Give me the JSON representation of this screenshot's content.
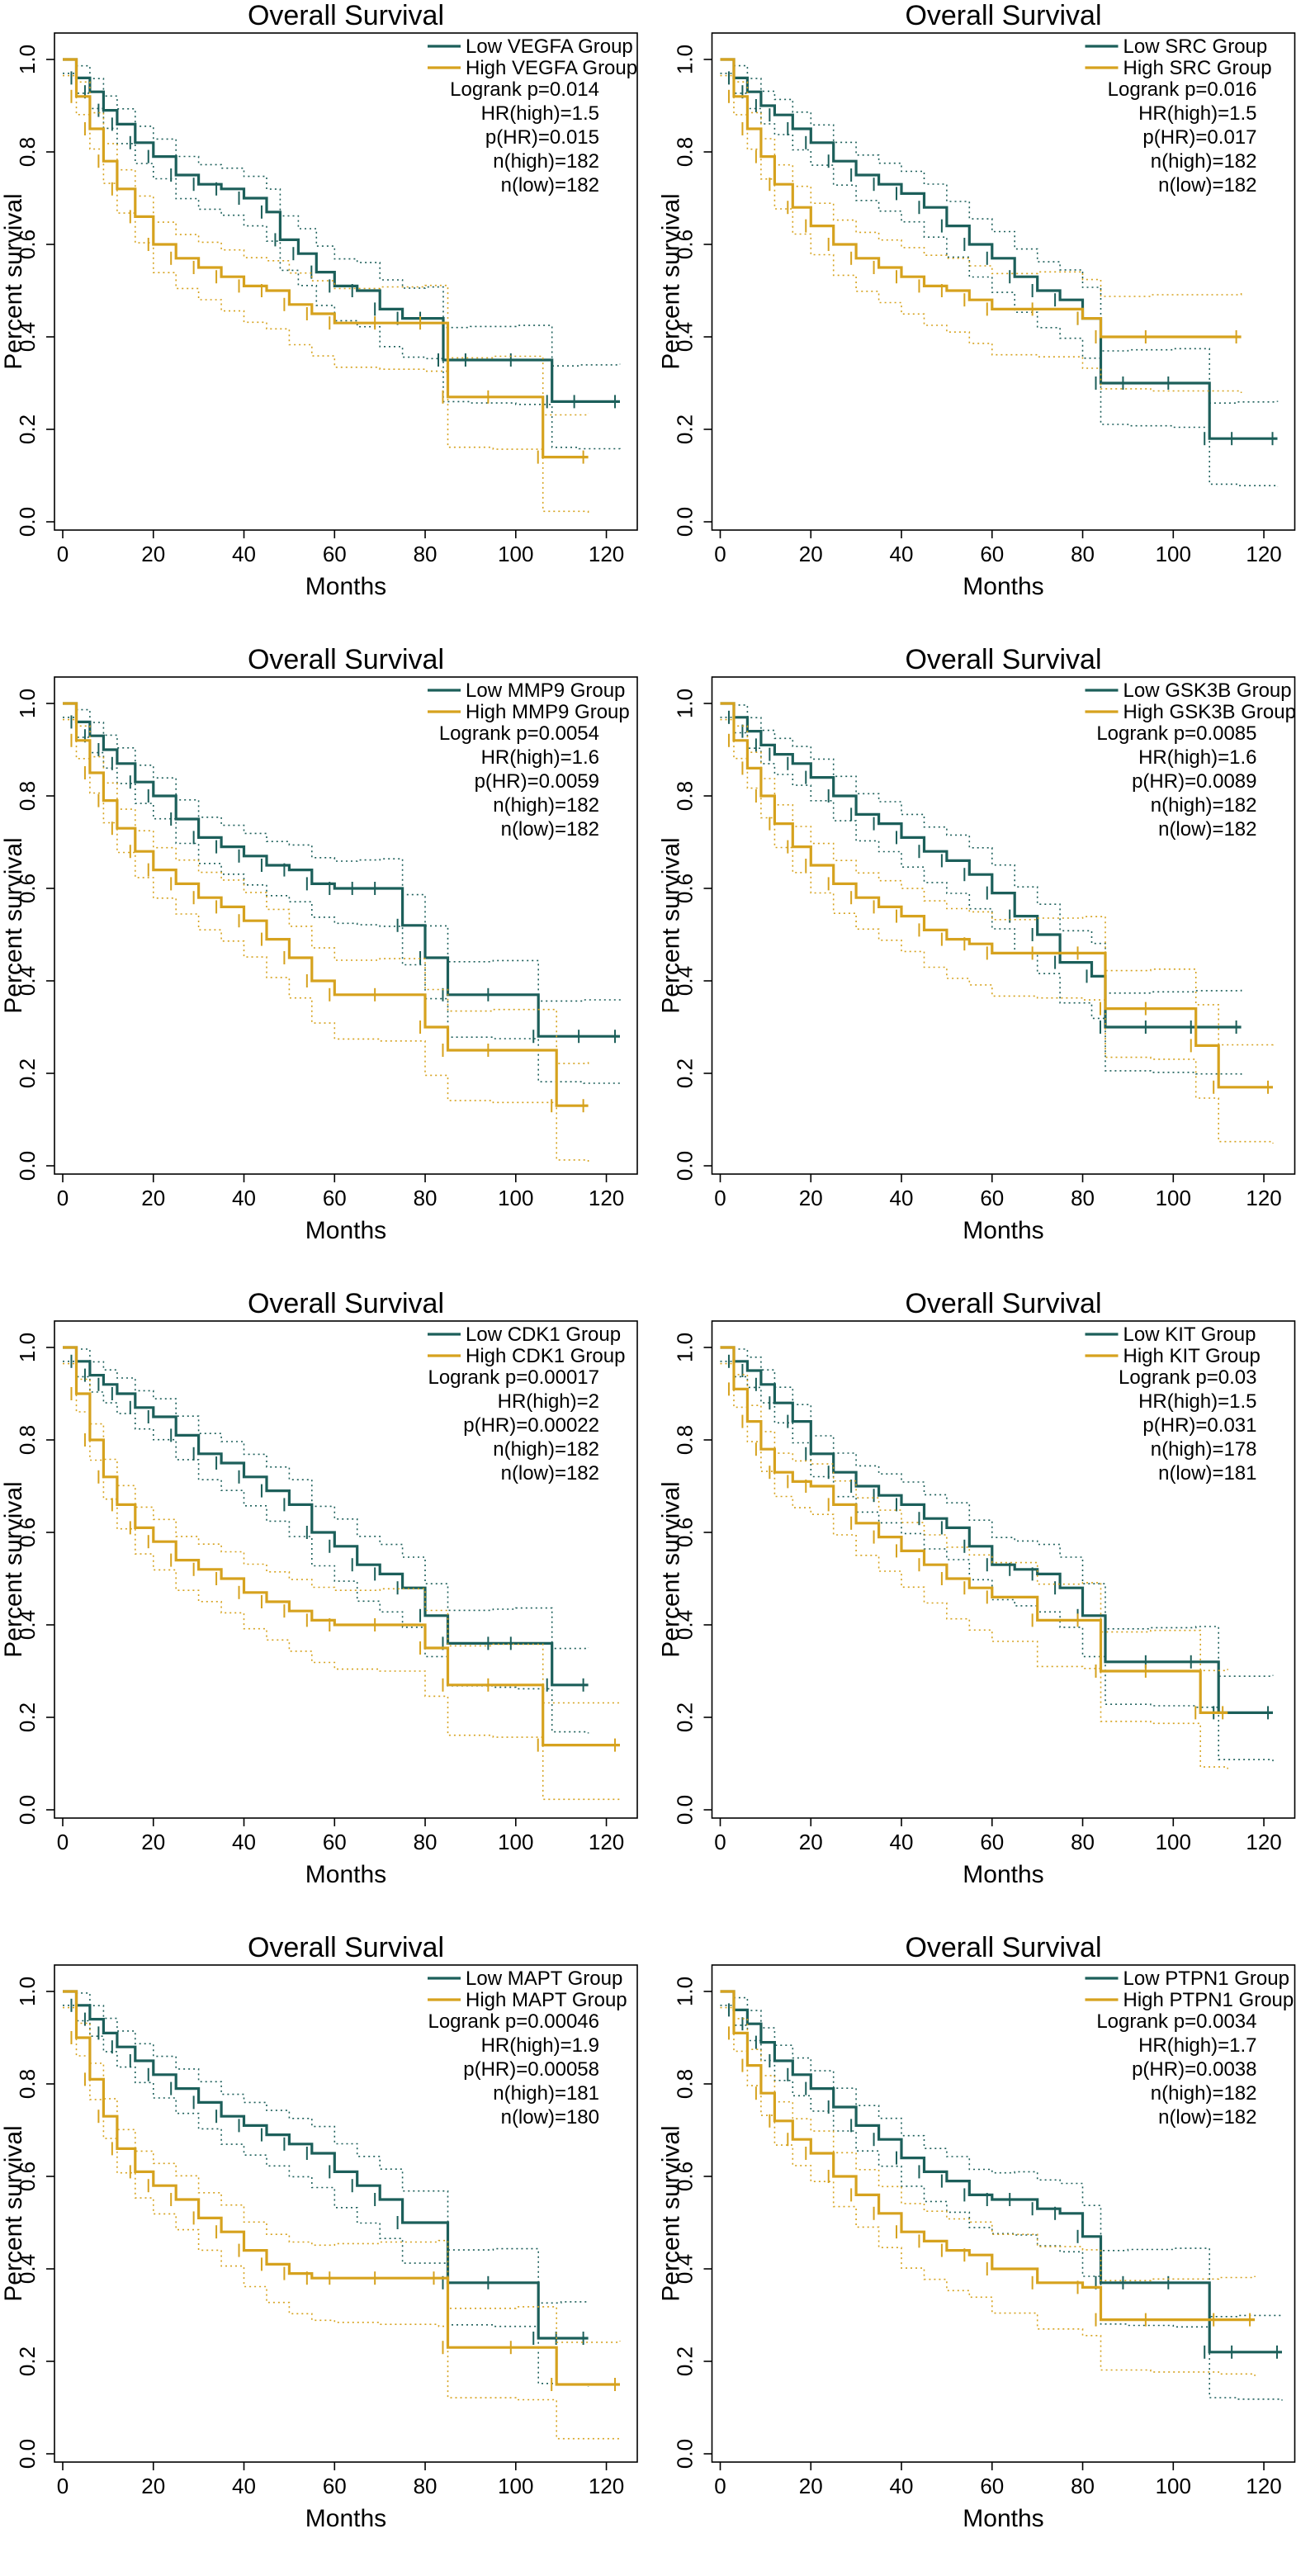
{
  "colors": {
    "low": "#1c5f5a",
    "high": "#d6a21e",
    "axis": "#000000"
  },
  "chart_data": [
    {
      "type": "line",
      "title": "Overall Survival",
      "xlabel": "Months",
      "ylabel": "Percent survival",
      "xlim": [
        0,
        125
      ],
      "ylim": [
        0,
        1
      ],
      "xticks": [
        0,
        20,
        40,
        60,
        80,
        100,
        120
      ],
      "yticks": [
        0.0,
        0.2,
        0.4,
        0.6,
        0.8,
        1.0
      ],
      "legend_position": "top-right",
      "stats": [
        "Logrank p=0.014",
        "HR(high)=1.5",
        "p(HR)=0.015",
        "n(high)=182",
        "n(low)=182"
      ],
      "series": [
        {
          "name": "Low VEGFA Group",
          "group": "low",
          "x": [
            0,
            3,
            6,
            9,
            12,
            16,
            20,
            25,
            30,
            35,
            40,
            45,
            48,
            52,
            56,
            60,
            65,
            70,
            75,
            80,
            84,
            90,
            100,
            108,
            114,
            123
          ],
          "y": [
            1.0,
            0.96,
            0.93,
            0.89,
            0.86,
            0.82,
            0.79,
            0.75,
            0.73,
            0.72,
            0.7,
            0.67,
            0.61,
            0.58,
            0.54,
            0.51,
            0.5,
            0.46,
            0.44,
            0.44,
            0.35,
            0.35,
            0.35,
            0.26,
            0.26,
            0.26
          ]
        },
        {
          "name": "High VEGFA Group",
          "group": "high",
          "x": [
            0,
            3,
            6,
            9,
            12,
            16,
            20,
            25,
            30,
            35,
            40,
            45,
            50,
            55,
            60,
            70,
            80,
            85,
            95,
            106,
            116
          ],
          "y": [
            1.0,
            0.92,
            0.85,
            0.78,
            0.72,
            0.66,
            0.6,
            0.57,
            0.55,
            0.53,
            0.51,
            0.5,
            0.47,
            0.45,
            0.43,
            0.43,
            0.43,
            0.27,
            0.27,
            0.14,
            0.14
          ]
        }
      ]
    },
    {
      "type": "line",
      "title": "Overall Survival",
      "xlabel": "Months",
      "ylabel": "Percent survival",
      "xlim": [
        0,
        125
      ],
      "ylim": [
        0,
        1
      ],
      "xticks": [
        0,
        20,
        40,
        60,
        80,
        100,
        120
      ],
      "yticks": [
        0.0,
        0.2,
        0.4,
        0.6,
        0.8,
        1.0
      ],
      "legend_position": "top-right",
      "stats": [
        "Logrank p=0.016",
        "HR(high)=1.5",
        "p(HR)=0.017",
        "n(high)=182",
        "n(low)=182"
      ],
      "series": [
        {
          "name": "Low SRC Group",
          "group": "low",
          "x": [
            0,
            3,
            6,
            9,
            12,
            16,
            20,
            25,
            30,
            35,
            40,
            45,
            50,
            55,
            60,
            65,
            70,
            75,
            80,
            84,
            90,
            100,
            108,
            114,
            123
          ],
          "y": [
            1.0,
            0.96,
            0.93,
            0.9,
            0.88,
            0.85,
            0.82,
            0.78,
            0.75,
            0.73,
            0.71,
            0.68,
            0.64,
            0.6,
            0.57,
            0.53,
            0.5,
            0.48,
            0.44,
            0.3,
            0.3,
            0.3,
            0.18,
            0.18,
            0.18
          ]
        },
        {
          "name": "High SRC Group",
          "group": "high",
          "x": [
            0,
            3,
            6,
            9,
            12,
            16,
            20,
            25,
            30,
            35,
            40,
            45,
            50,
            55,
            60,
            70,
            80,
            84,
            95,
            115
          ],
          "y": [
            1.0,
            0.92,
            0.85,
            0.79,
            0.73,
            0.68,
            0.64,
            0.6,
            0.57,
            0.55,
            0.53,
            0.51,
            0.5,
            0.48,
            0.46,
            0.46,
            0.44,
            0.4,
            0.4,
            0.4
          ]
        }
      ]
    },
    {
      "type": "line",
      "title": "Overall Survival",
      "xlabel": "Months",
      "ylabel": "Percent survival",
      "xlim": [
        0,
        125
      ],
      "ylim": [
        0,
        1
      ],
      "xticks": [
        0,
        20,
        40,
        60,
        80,
        100,
        120
      ],
      "yticks": [
        0.0,
        0.2,
        0.4,
        0.6,
        0.8,
        1.0
      ],
      "legend_position": "top-right",
      "stats": [
        "Logrank p=0.0054",
        "HR(high)=1.6",
        "p(HR)=0.0059",
        "n(high)=182",
        "n(low)=182"
      ],
      "series": [
        {
          "name": "Low MMP9 Group",
          "group": "low",
          "x": [
            0,
            3,
            6,
            9,
            12,
            16,
            20,
            25,
            30,
            35,
            40,
            45,
            50,
            55,
            60,
            65,
            70,
            75,
            80,
            85,
            95,
            105,
            115,
            123
          ],
          "y": [
            1.0,
            0.96,
            0.93,
            0.9,
            0.87,
            0.83,
            0.8,
            0.75,
            0.71,
            0.69,
            0.67,
            0.65,
            0.64,
            0.61,
            0.6,
            0.6,
            0.6,
            0.52,
            0.45,
            0.37,
            0.37,
            0.28,
            0.28,
            0.28
          ]
        },
        {
          "name": "High MMP9 Group",
          "group": "high",
          "x": [
            0,
            3,
            6,
            9,
            12,
            16,
            20,
            25,
            30,
            35,
            40,
            45,
            50,
            55,
            60,
            70,
            80,
            85,
            95,
            109,
            116
          ],
          "y": [
            1.0,
            0.92,
            0.85,
            0.79,
            0.73,
            0.68,
            0.64,
            0.61,
            0.58,
            0.56,
            0.53,
            0.49,
            0.45,
            0.4,
            0.37,
            0.37,
            0.3,
            0.25,
            0.25,
            0.13,
            0.13
          ]
        }
      ]
    },
    {
      "type": "line",
      "title": "Overall Survival",
      "xlabel": "Months",
      "ylabel": "Percent survival",
      "xlim": [
        0,
        125
      ],
      "ylim": [
        0,
        1
      ],
      "xticks": [
        0,
        20,
        40,
        60,
        80,
        100,
        120
      ],
      "yticks": [
        0.0,
        0.2,
        0.4,
        0.6,
        0.8,
        1.0
      ],
      "legend_position": "top-right",
      "stats": [
        "Logrank p=0.0085",
        "HR(high)=1.6",
        "p(HR)=0.0089",
        "n(high)=182",
        "n(low)=182"
      ],
      "series": [
        {
          "name": "Low GSK3B Group",
          "group": "low",
          "x": [
            0,
            3,
            6,
            9,
            12,
            16,
            20,
            25,
            30,
            35,
            40,
            45,
            50,
            55,
            60,
            65,
            70,
            75,
            82,
            85,
            95,
            105,
            115
          ],
          "y": [
            1.0,
            0.97,
            0.94,
            0.91,
            0.89,
            0.87,
            0.84,
            0.8,
            0.76,
            0.74,
            0.71,
            0.68,
            0.66,
            0.63,
            0.59,
            0.54,
            0.5,
            0.44,
            0.41,
            0.3,
            0.3,
            0.3,
            0.3
          ]
        },
        {
          "name": "High GSK3B Group",
          "group": "high",
          "x": [
            0,
            3,
            6,
            9,
            12,
            16,
            20,
            25,
            30,
            35,
            40,
            45,
            50,
            55,
            60,
            70,
            80,
            85,
            95,
            105,
            110,
            122
          ],
          "y": [
            1.0,
            0.92,
            0.86,
            0.8,
            0.74,
            0.69,
            0.65,
            0.61,
            0.58,
            0.56,
            0.54,
            0.51,
            0.49,
            0.48,
            0.46,
            0.46,
            0.46,
            0.34,
            0.34,
            0.26,
            0.17,
            0.17
          ]
        }
      ]
    },
    {
      "type": "line",
      "title": "Overall Survival",
      "xlabel": "Months",
      "ylabel": "Percent survival",
      "xlim": [
        0,
        125
      ],
      "ylim": [
        0,
        1
      ],
      "xticks": [
        0,
        20,
        40,
        60,
        80,
        100,
        120
      ],
      "yticks": [
        0.0,
        0.2,
        0.4,
        0.6,
        0.8,
        1.0
      ],
      "legend_position": "top-right",
      "stats": [
        "Logrank p=0.00017",
        "HR(high)=2",
        "p(HR)=0.00022",
        "n(high)=182",
        "n(low)=182"
      ],
      "series": [
        {
          "name": "Low CDK1 Group",
          "group": "low",
          "x": [
            0,
            3,
            6,
            9,
            12,
            16,
            20,
            25,
            30,
            35,
            40,
            45,
            50,
            55,
            60,
            65,
            70,
            75,
            80,
            85,
            95,
            100,
            108,
            116
          ],
          "y": [
            1.0,
            0.97,
            0.94,
            0.92,
            0.9,
            0.87,
            0.85,
            0.81,
            0.77,
            0.75,
            0.72,
            0.69,
            0.66,
            0.6,
            0.57,
            0.53,
            0.51,
            0.48,
            0.42,
            0.36,
            0.36,
            0.36,
            0.27,
            0.27
          ]
        },
        {
          "name": "High CDK1 Group",
          "group": "high",
          "x": [
            0,
            3,
            6,
            9,
            12,
            16,
            20,
            25,
            30,
            35,
            40,
            45,
            50,
            55,
            60,
            70,
            80,
            85,
            95,
            106,
            123
          ],
          "y": [
            1.0,
            0.9,
            0.8,
            0.72,
            0.66,
            0.61,
            0.58,
            0.54,
            0.52,
            0.5,
            0.47,
            0.45,
            0.43,
            0.41,
            0.4,
            0.4,
            0.35,
            0.27,
            0.27,
            0.14,
            0.14
          ]
        }
      ]
    },
    {
      "type": "line",
      "title": "Overall Survival",
      "xlabel": "Months",
      "ylabel": "Percent survival",
      "xlim": [
        0,
        125
      ],
      "ylim": [
        0,
        1
      ],
      "xticks": [
        0,
        20,
        40,
        60,
        80,
        100,
        120
      ],
      "yticks": [
        0.0,
        0.2,
        0.4,
        0.6,
        0.8,
        1.0
      ],
      "legend_position": "top-right",
      "stats": [
        "Logrank p=0.03",
        "HR(high)=1.5",
        "p(HR)=0.031",
        "n(high)=178",
        "n(low)=181"
      ],
      "series": [
        {
          "name": "Low KIT Group",
          "group": "low",
          "x": [
            0,
            3,
            6,
            9,
            12,
            16,
            20,
            25,
            30,
            35,
            40,
            45,
            50,
            55,
            60,
            65,
            70,
            75,
            80,
            85,
            95,
            105,
            110,
            122
          ],
          "y": [
            1.0,
            0.97,
            0.95,
            0.92,
            0.88,
            0.84,
            0.77,
            0.73,
            0.7,
            0.68,
            0.66,
            0.63,
            0.61,
            0.57,
            0.53,
            0.52,
            0.51,
            0.48,
            0.42,
            0.32,
            0.32,
            0.32,
            0.21,
            0.21
          ]
        },
        {
          "name": "High KIT Group",
          "group": "high",
          "x": [
            0,
            3,
            6,
            9,
            12,
            16,
            20,
            25,
            30,
            35,
            40,
            45,
            50,
            55,
            60,
            70,
            80,
            84,
            95,
            106,
            112
          ],
          "y": [
            1.0,
            0.91,
            0.84,
            0.78,
            0.73,
            0.71,
            0.7,
            0.66,
            0.62,
            0.59,
            0.56,
            0.53,
            0.5,
            0.48,
            0.46,
            0.41,
            0.41,
            0.3,
            0.3,
            0.21,
            0.21
          ]
        }
      ]
    },
    {
      "type": "line",
      "title": "Overall Survival",
      "xlabel": "Months",
      "ylabel": "Percent survival",
      "xlim": [
        0,
        125
      ],
      "ylim": [
        0,
        1
      ],
      "xticks": [
        0,
        20,
        40,
        60,
        80,
        100,
        120
      ],
      "yticks": [
        0.0,
        0.2,
        0.4,
        0.6,
        0.8,
        1.0
      ],
      "legend_position": "top-right",
      "stats": [
        "Logrank p=0.00046",
        "HR(high)=1.9",
        "p(HR)=0.00058",
        "n(high)=181",
        "n(low)=180"
      ],
      "series": [
        {
          "name": "Low MAPT Group",
          "group": "low",
          "x": [
            0,
            3,
            6,
            9,
            12,
            16,
            20,
            25,
            30,
            35,
            40,
            45,
            50,
            55,
            60,
            65,
            70,
            75,
            85,
            95,
            105,
            110,
            116
          ],
          "y": [
            1.0,
            0.97,
            0.94,
            0.91,
            0.88,
            0.85,
            0.82,
            0.79,
            0.76,
            0.73,
            0.71,
            0.69,
            0.67,
            0.65,
            0.61,
            0.58,
            0.55,
            0.5,
            0.37,
            0.37,
            0.25,
            0.25,
            0.25
          ]
        },
        {
          "name": "High MAPT Group",
          "group": "high",
          "x": [
            0,
            3,
            6,
            9,
            12,
            16,
            20,
            25,
            30,
            35,
            40,
            45,
            50,
            55,
            60,
            70,
            83,
            85,
            100,
            109,
            123
          ],
          "y": [
            1.0,
            0.9,
            0.81,
            0.73,
            0.66,
            0.61,
            0.58,
            0.55,
            0.51,
            0.48,
            0.44,
            0.41,
            0.39,
            0.38,
            0.38,
            0.38,
            0.38,
            0.23,
            0.23,
            0.15,
            0.15
          ]
        }
      ]
    },
    {
      "type": "line",
      "title": "Overall Survival",
      "xlabel": "Months",
      "ylabel": "Percent survival",
      "xlim": [
        0,
        125
      ],
      "ylim": [
        0,
        1
      ],
      "xticks": [
        0,
        20,
        40,
        60,
        80,
        100,
        120
      ],
      "yticks": [
        0.0,
        0.2,
        0.4,
        0.6,
        0.8,
        1.0
      ],
      "legend_position": "top-right",
      "stats": [
        "Logrank p=0.0034",
        "HR(high)=1.7",
        "p(HR)=0.0038",
        "n(high)=182",
        "n(low)=182"
      ],
      "series": [
        {
          "name": "Low PTPN1 Group",
          "group": "low",
          "x": [
            0,
            3,
            6,
            9,
            12,
            16,
            20,
            25,
            30,
            35,
            40,
            45,
            50,
            55,
            60,
            65,
            70,
            75,
            80,
            84,
            90,
            100,
            108,
            114,
            124
          ],
          "y": [
            1.0,
            0.96,
            0.93,
            0.89,
            0.85,
            0.82,
            0.79,
            0.75,
            0.71,
            0.68,
            0.64,
            0.61,
            0.59,
            0.56,
            0.55,
            0.55,
            0.53,
            0.52,
            0.47,
            0.37,
            0.37,
            0.37,
            0.22,
            0.22,
            0.22
          ]
        },
        {
          "name": "High PTPN1 Group",
          "group": "high",
          "x": [
            0,
            3,
            6,
            9,
            12,
            16,
            20,
            25,
            30,
            35,
            40,
            45,
            50,
            55,
            60,
            70,
            80,
            84,
            95,
            110,
            118
          ],
          "y": [
            1.0,
            0.91,
            0.84,
            0.78,
            0.72,
            0.68,
            0.65,
            0.6,
            0.56,
            0.52,
            0.48,
            0.46,
            0.44,
            0.43,
            0.4,
            0.37,
            0.36,
            0.29,
            0.29,
            0.29,
            0.29
          ]
        }
      ]
    }
  ]
}
